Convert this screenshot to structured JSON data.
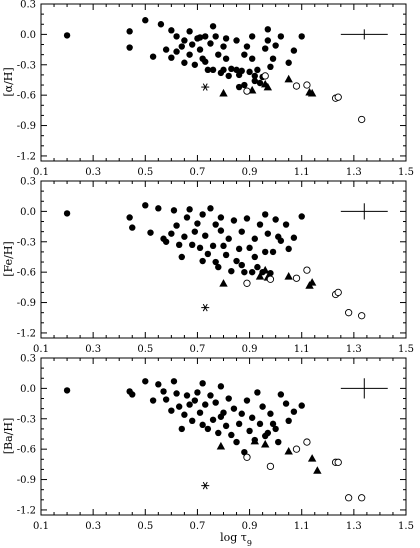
{
  "chart_data": [
    {
      "type": "scatter",
      "ylabel": "[α/H]",
      "xlim": [
        0.1,
        1.5
      ],
      "ylim": [
        -1.25,
        0.3
      ],
      "xticks": [
        "0.1",
        "0.3",
        "0.5",
        "0.7",
        "0.9",
        "1.1",
        "1.3",
        "1.5"
      ],
      "yticks": [
        "0.3",
        "0.0",
        "-0.3",
        "-0.6",
        "-0.9",
        "-1.2"
      ],
      "error_bar": {
        "x": 1.34,
        "y": 0.0,
        "dx": 0.09,
        "dy": 0.05
      },
      "series": [
        {
          "marker": "filled-circle",
          "points": [
            [
              0.2,
              -0.01
            ],
            [
              0.44,
              0.03
            ],
            [
              0.44,
              -0.13
            ],
            [
              0.5,
              0.14
            ],
            [
              0.53,
              -0.22
            ],
            [
              0.56,
              0.1
            ],
            [
              0.58,
              -0.15
            ],
            [
              0.6,
              -0.23
            ],
            [
              0.6,
              0.04
            ],
            [
              0.62,
              -0.02
            ],
            [
              0.62,
              -0.17
            ],
            [
              0.64,
              -0.12
            ],
            [
              0.65,
              -0.28
            ],
            [
              0.65,
              -0.06
            ],
            [
              0.67,
              -0.2
            ],
            [
              0.67,
              0.03
            ],
            [
              0.68,
              -0.1
            ],
            [
              0.69,
              -0.3
            ],
            [
              0.7,
              -0.04
            ],
            [
              0.71,
              -0.03
            ],
            [
              0.71,
              -0.15
            ],
            [
              0.72,
              -0.24
            ],
            [
              0.73,
              -0.02
            ],
            [
              0.73,
              -0.27
            ],
            [
              0.74,
              -0.35
            ],
            [
              0.75,
              -0.09
            ],
            [
              0.76,
              0.08
            ],
            [
              0.76,
              -0.35
            ],
            [
              0.77,
              -0.02
            ],
            [
              0.78,
              -0.2
            ],
            [
              0.79,
              -0.38
            ],
            [
              0.8,
              -0.12
            ],
            [
              0.8,
              -0.35
            ],
            [
              0.81,
              -0.04
            ],
            [
              0.81,
              -0.24
            ],
            [
              0.82,
              -0.41
            ],
            [
              0.83,
              -0.34
            ],
            [
              0.85,
              -0.06
            ],
            [
              0.85,
              -0.35
            ],
            [
              0.86,
              -0.4
            ],
            [
              0.86,
              -0.52
            ],
            [
              0.87,
              -0.36
            ],
            [
              0.88,
              -0.2
            ],
            [
              0.88,
              -0.5
            ],
            [
              0.89,
              -0.12
            ],
            [
              0.9,
              -0.37
            ],
            [
              0.91,
              -0.02
            ],
            [
              0.91,
              -0.24
            ],
            [
              0.92,
              -0.41
            ],
            [
              0.92,
              -0.46
            ],
            [
              0.93,
              -0.35
            ],
            [
              0.94,
              -0.48
            ],
            [
              0.95,
              -0.42
            ],
            [
              0.96,
              -0.14
            ],
            [
              0.97,
              0.05
            ],
            [
              0.97,
              -0.06
            ],
            [
              0.98,
              -0.32
            ],
            [
              0.99,
              -0.24
            ],
            [
              1.0,
              -0.11
            ],
            [
              1.02,
              -0.02
            ],
            [
              1.05,
              -0.28
            ],
            [
              1.07,
              -0.16
            ],
            [
              1.1,
              -0.02
            ]
          ]
        },
        {
          "marker": "filled-triangle",
          "points": [
            [
              0.8,
              -0.58
            ],
            [
              0.91,
              -0.55
            ],
            [
              0.96,
              -0.49
            ],
            [
              0.97,
              -0.52
            ],
            [
              1.05,
              -0.44
            ],
            [
              1.13,
              -0.57
            ],
            [
              1.14,
              -0.58
            ]
          ]
        },
        {
          "marker": "open-circle",
          "points": [
            [
              0.89,
              -0.56
            ],
            [
              0.96,
              -0.41
            ],
            [
              1.08,
              -0.51
            ],
            [
              1.12,
              -0.5
            ],
            [
              1.23,
              -0.63
            ],
            [
              1.24,
              -0.62
            ],
            [
              1.33,
              -0.84
            ]
          ]
        },
        {
          "marker": "asterisk",
          "points": [
            [
              0.73,
              -0.52
            ]
          ]
        }
      ]
    },
    {
      "type": "scatter",
      "ylabel": "[Fe/H]",
      "xlim": [
        0.1,
        1.5
      ],
      "ylim": [
        -1.25,
        0.3
      ],
      "xticks": [
        "0.1",
        "0.3",
        "0.5",
        "0.7",
        "0.9",
        "1.1",
        "1.3",
        "1.5"
      ],
      "yticks": [
        "0.3",
        "0.0",
        "-0.3",
        "-0.6",
        "-0.9",
        "-1.2"
      ],
      "error_bar": {
        "x": 1.34,
        "y": 0.0,
        "dx": 0.09,
        "dy": 0.08
      },
      "series": [
        {
          "marker": "filled-circle",
          "points": [
            [
              0.2,
              -0.02
            ],
            [
              0.44,
              -0.06
            ],
            [
              0.45,
              -0.16
            ],
            [
              0.5,
              0.06
            ],
            [
              0.52,
              -0.21
            ],
            [
              0.55,
              0.03
            ],
            [
              0.57,
              -0.27
            ],
            [
              0.58,
              -0.3
            ],
            [
              0.6,
              -0.22
            ],
            [
              0.61,
              0.01
            ],
            [
              0.62,
              -0.14
            ],
            [
              0.63,
              -0.33
            ],
            [
              0.64,
              -0.45
            ],
            [
              0.65,
              -0.25
            ],
            [
              0.66,
              -0.06
            ],
            [
              0.67,
              0.02
            ],
            [
              0.68,
              -0.33
            ],
            [
              0.69,
              -0.2
            ],
            [
              0.7,
              -0.12
            ],
            [
              0.71,
              -0.36
            ],
            [
              0.72,
              -0.03
            ],
            [
              0.72,
              -0.49
            ],
            [
              0.73,
              -0.24
            ],
            [
              0.74,
              -0.42
            ],
            [
              0.75,
              0.03
            ],
            [
              0.76,
              -0.34
            ],
            [
              0.77,
              -0.13
            ],
            [
              0.77,
              -0.5
            ],
            [
              0.78,
              -0.55
            ],
            [
              0.79,
              -0.19
            ],
            [
              0.79,
              -0.06
            ],
            [
              0.8,
              -0.34
            ],
            [
              0.81,
              -0.43
            ],
            [
              0.82,
              -0.27
            ],
            [
              0.83,
              -0.59
            ],
            [
              0.84,
              -0.09
            ],
            [
              0.85,
              -0.49
            ],
            [
              0.86,
              -0.37
            ],
            [
              0.87,
              -0.53
            ],
            [
              0.87,
              -0.2
            ],
            [
              0.88,
              -0.6
            ],
            [
              0.89,
              -0.07
            ],
            [
              0.9,
              -0.36
            ],
            [
              0.91,
              -0.6
            ],
            [
              0.92,
              -0.27
            ],
            [
              0.92,
              -0.45
            ],
            [
              0.93,
              -0.55
            ],
            [
              0.94,
              -0.13
            ],
            [
              0.95,
              -0.6
            ],
            [
              0.96,
              -0.4
            ],
            [
              0.96,
              -0.03
            ],
            [
              0.97,
              -0.22
            ],
            [
              0.98,
              -0.61
            ],
            [
              0.99,
              -0.4
            ],
            [
              1.0,
              -0.08
            ],
            [
              1.01,
              -0.25
            ],
            [
              1.02,
              -0.29
            ],
            [
              1.04,
              -0.13
            ],
            [
              1.05,
              -0.37
            ],
            [
              1.07,
              -0.26
            ],
            [
              1.1,
              -0.05
            ]
          ]
        },
        {
          "marker": "filled-triangle",
          "points": [
            [
              0.8,
              -0.71
            ],
            [
              0.94,
              -0.64
            ],
            [
              0.96,
              -0.58
            ],
            [
              0.97,
              -0.65
            ],
            [
              1.05,
              -0.64
            ],
            [
              1.13,
              -0.73
            ],
            [
              1.14,
              -0.7
            ]
          ]
        },
        {
          "marker": "open-circle",
          "points": [
            [
              0.89,
              -0.71
            ],
            [
              0.98,
              -0.67
            ],
            [
              1.08,
              -0.66
            ],
            [
              1.12,
              -0.58
            ],
            [
              1.23,
              -0.82
            ],
            [
              1.24,
              -0.8
            ],
            [
              1.28,
              -1.0
            ],
            [
              1.33,
              -1.03
            ]
          ]
        },
        {
          "marker": "asterisk",
          "points": [
            [
              0.73,
              -0.95
            ]
          ]
        }
      ]
    },
    {
      "type": "scatter",
      "ylabel": "[Ba/H]",
      "xlabel": "log τ9",
      "xlim": [
        0.1,
        1.5
      ],
      "ylim": [
        -1.25,
        0.3
      ],
      "xticks": [
        "0.1",
        "0.3",
        "0.5",
        "0.7",
        "0.9",
        "1.1",
        "1.3",
        "1.5"
      ],
      "yticks": [
        "0.3",
        "0.0",
        "-0.3",
        "-0.6",
        "-0.9",
        "-1.2"
      ],
      "error_bar": {
        "x": 1.34,
        "y": 0.0,
        "dx": 0.09,
        "dy": 0.1
      },
      "series": [
        {
          "marker": "filled-circle",
          "points": [
            [
              0.2,
              -0.02
            ],
            [
              0.44,
              -0.03
            ],
            [
              0.45,
              -0.06
            ],
            [
              0.5,
              0.07
            ],
            [
              0.53,
              -0.12
            ],
            [
              0.55,
              0.04
            ],
            [
              0.57,
              -0.03
            ],
            [
              0.58,
              -0.11
            ],
            [
              0.6,
              -0.22
            ],
            [
              0.61,
              0.07
            ],
            [
              0.62,
              -0.05
            ],
            [
              0.63,
              -0.18
            ],
            [
              0.64,
              -0.4
            ],
            [
              0.65,
              -0.26
            ],
            [
              0.66,
              -0.07
            ],
            [
              0.67,
              -0.16
            ],
            [
              0.68,
              -0.32
            ],
            [
              0.69,
              -0.12
            ],
            [
              0.7,
              -0.04
            ],
            [
              0.71,
              -0.24
            ],
            [
              0.72,
              0.05
            ],
            [
              0.72,
              -0.36
            ],
            [
              0.73,
              -0.16
            ],
            [
              0.74,
              -0.4
            ],
            [
              0.75,
              -0.07
            ],
            [
              0.76,
              -0.31
            ],
            [
              0.77,
              -0.14
            ],
            [
              0.78,
              -0.44
            ],
            [
              0.79,
              -0.28
            ],
            [
              0.79,
              0.02
            ],
            [
              0.8,
              -0.24
            ],
            [
              0.81,
              -0.37
            ],
            [
              0.82,
              -0.1
            ],
            [
              0.83,
              -0.46
            ],
            [
              0.84,
              -0.2
            ],
            [
              0.85,
              -0.53
            ],
            [
              0.86,
              -0.35
            ],
            [
              0.87,
              -0.25
            ],
            [
              0.88,
              -0.63
            ],
            [
              0.89,
              -0.12
            ],
            [
              0.9,
              -0.42
            ],
            [
              0.91,
              -0.29
            ],
            [
              0.92,
              -0.51
            ],
            [
              0.93,
              -0.04
            ],
            [
              0.94,
              -0.35
            ],
            [
              0.95,
              -0.18
            ],
            [
              0.96,
              -0.47
            ],
            [
              0.97,
              -0.44
            ],
            [
              0.98,
              -0.25
            ],
            [
              0.99,
              -0.35
            ],
            [
              1.0,
              -0.4
            ],
            [
              1.01,
              -0.53
            ],
            [
              1.02,
              -0.06
            ],
            [
              1.04,
              -0.15
            ],
            [
              1.05,
              -0.32
            ],
            [
              1.07,
              -0.23
            ],
            [
              1.1,
              -0.17
            ]
          ]
        },
        {
          "marker": "filled-triangle",
          "points": [
            [
              0.79,
              -0.57
            ],
            [
              0.92,
              -0.52
            ],
            [
              0.96,
              -0.55
            ],
            [
              1.05,
              -0.62
            ],
            [
              1.14,
              -0.69
            ],
            [
              1.16,
              -0.81
            ]
          ]
        },
        {
          "marker": "open-circle",
          "points": [
            [
              0.89,
              -0.68
            ],
            [
              0.98,
              -0.77
            ],
            [
              1.08,
              -0.6
            ],
            [
              1.12,
              -0.53
            ],
            [
              1.23,
              -0.73
            ],
            [
              1.24,
              -0.73
            ],
            [
              1.28,
              -1.08
            ],
            [
              1.33,
              -1.08
            ]
          ]
        },
        {
          "marker": "asterisk",
          "points": [
            [
              0.73,
              -0.96
            ]
          ]
        }
      ]
    }
  ]
}
